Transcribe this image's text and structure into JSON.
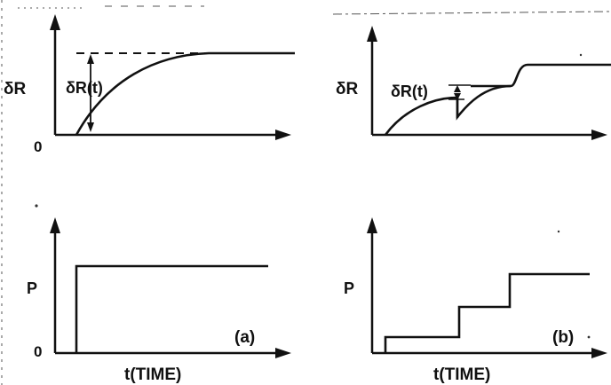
{
  "panels": {
    "a": {
      "tag": "(a)",
      "top": {
        "y_label": "δR",
        "origin_label": "0",
        "annotation": "δR(t)"
      },
      "bottom": {
        "y_label": "P",
        "origin_label": "0",
        "x_label": "t(TIME)"
      }
    },
    "b": {
      "tag": "(b)",
      "top": {
        "y_label": "δR",
        "annotation": "δR(t)"
      },
      "bottom": {
        "y_label": "P",
        "x_label": "t(TIME)"
      }
    }
  },
  "colors": {
    "ink": "#111111",
    "background": "#ffffff"
  }
}
